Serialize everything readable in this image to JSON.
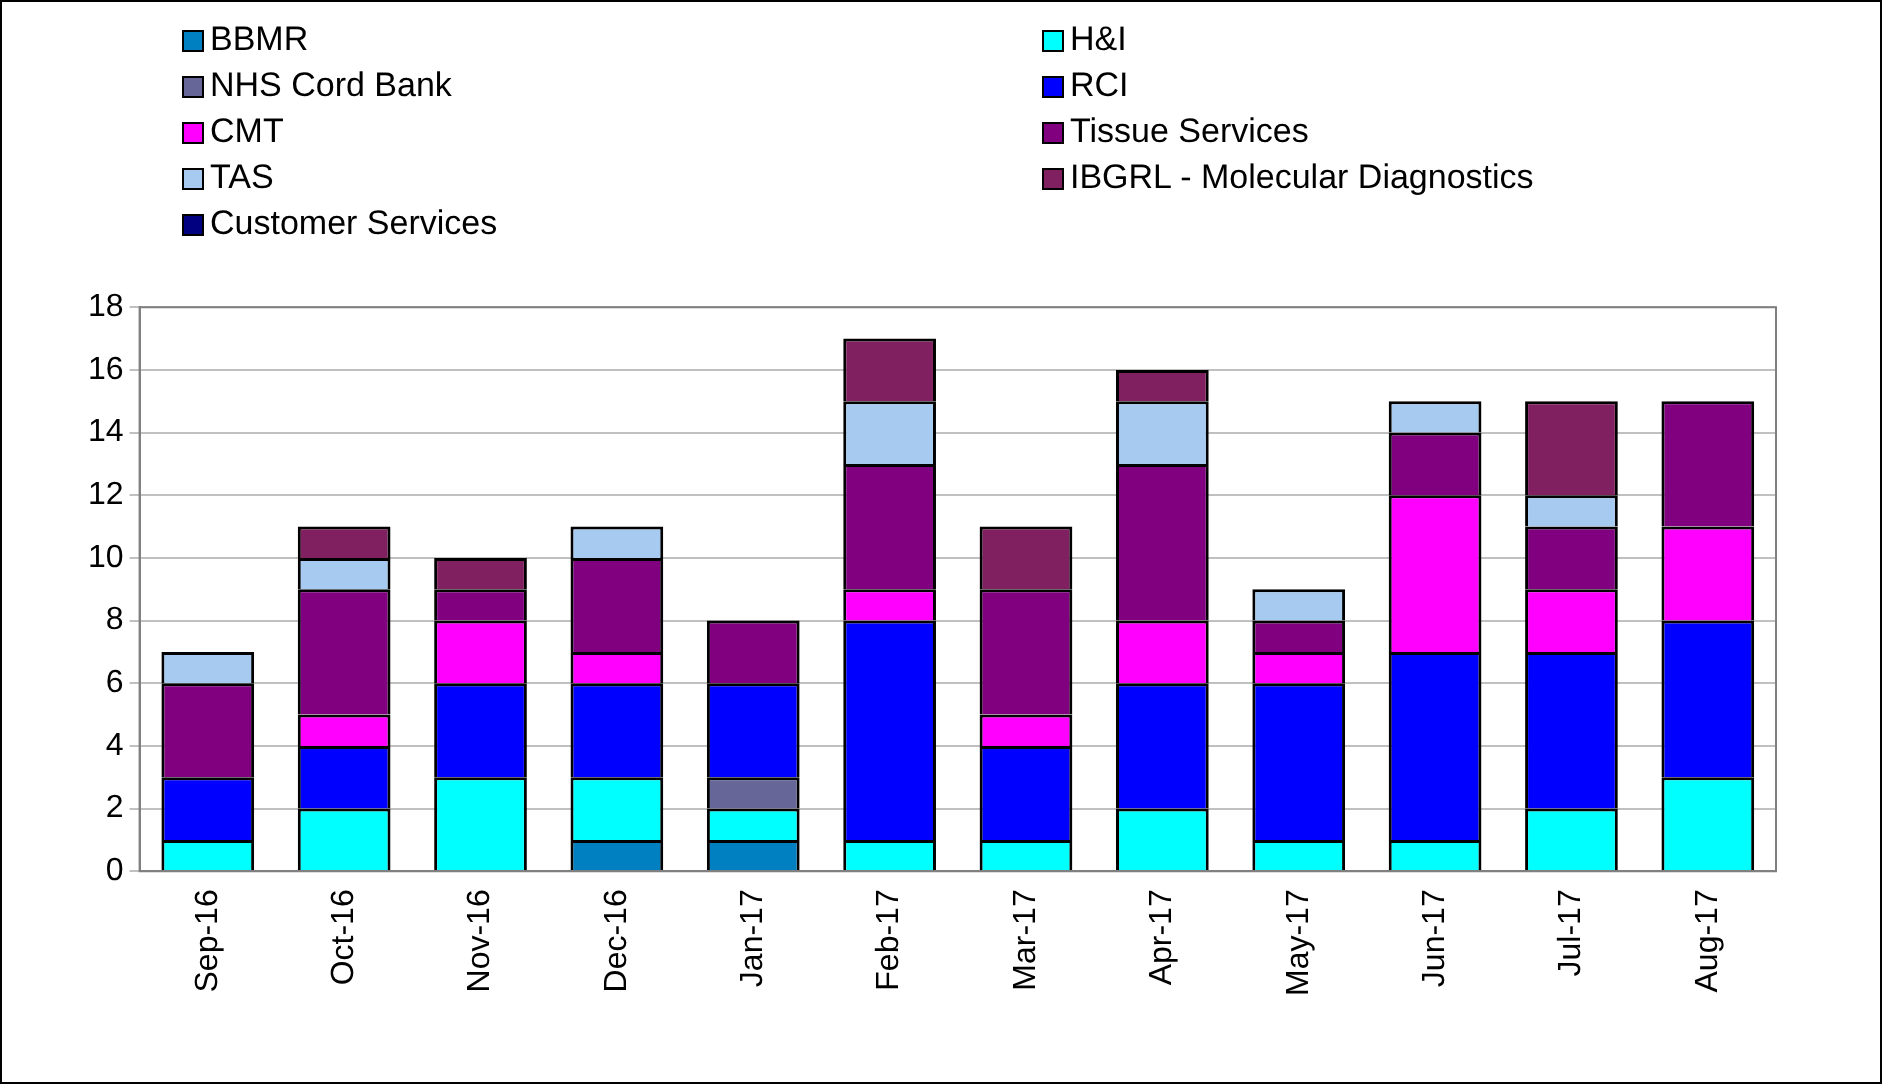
{
  "chart_data": {
    "type": "bar",
    "stacked": true,
    "categories": [
      "Sep-16",
      "Oct-16",
      "Nov-16",
      "Dec-16",
      "Jan-17",
      "Feb-17",
      "Mar-17",
      "Apr-17",
      "May-17",
      "Jun-17",
      "Jul-17",
      "Aug-17"
    ],
    "series": [
      {
        "name": "BBMR",
        "color": "#0080c0",
        "values": [
          0,
          0,
          0,
          1,
          1,
          0,
          0,
          0,
          0,
          0,
          0,
          0
        ]
      },
      {
        "name": "H&I",
        "color": "#00ffff",
        "values": [
          1,
          2,
          3,
          2,
          1,
          1,
          1,
          2,
          1,
          1,
          2,
          3
        ]
      },
      {
        "name": "NHS Cord Bank",
        "color": "#666699",
        "values": [
          0,
          0,
          0,
          0,
          1,
          0,
          0,
          0,
          0,
          0,
          0,
          0
        ]
      },
      {
        "name": "RCI",
        "color": "#0000ff",
        "values": [
          2,
          2,
          3,
          3,
          3,
          7,
          3,
          4,
          5,
          6,
          5,
          5
        ]
      },
      {
        "name": "CMT",
        "color": "#ff00ff",
        "values": [
          0,
          1,
          2,
          1,
          0,
          1,
          1,
          2,
          1,
          5,
          2,
          3
        ]
      },
      {
        "name": "Tissue Services",
        "color": "#800080",
        "values": [
          3,
          4,
          1,
          3,
          2,
          4,
          4,
          5,
          1,
          2,
          2,
          4
        ]
      },
      {
        "name": "TAS",
        "color": "#a6caf0",
        "values": [
          1,
          1,
          0,
          1,
          0,
          2,
          0,
          2,
          1,
          1,
          1,
          0
        ]
      },
      {
        "name": "IBGRL - Molecular Diagnostics",
        "color": "#802060",
        "values": [
          0,
          1,
          1,
          0,
          0,
          2,
          2,
          1,
          0,
          0,
          3,
          0
        ]
      },
      {
        "name": "Customer Services",
        "color": "#000080",
        "values": [
          0,
          0,
          0,
          0,
          0,
          0,
          0,
          0,
          0,
          0,
          0,
          0
        ]
      }
    ],
    "ylim": [
      0,
      18
    ],
    "yticks": [
      0,
      2,
      4,
      6,
      8,
      10,
      12,
      14,
      16,
      18
    ],
    "grid": "y",
    "legend": "top"
  }
}
